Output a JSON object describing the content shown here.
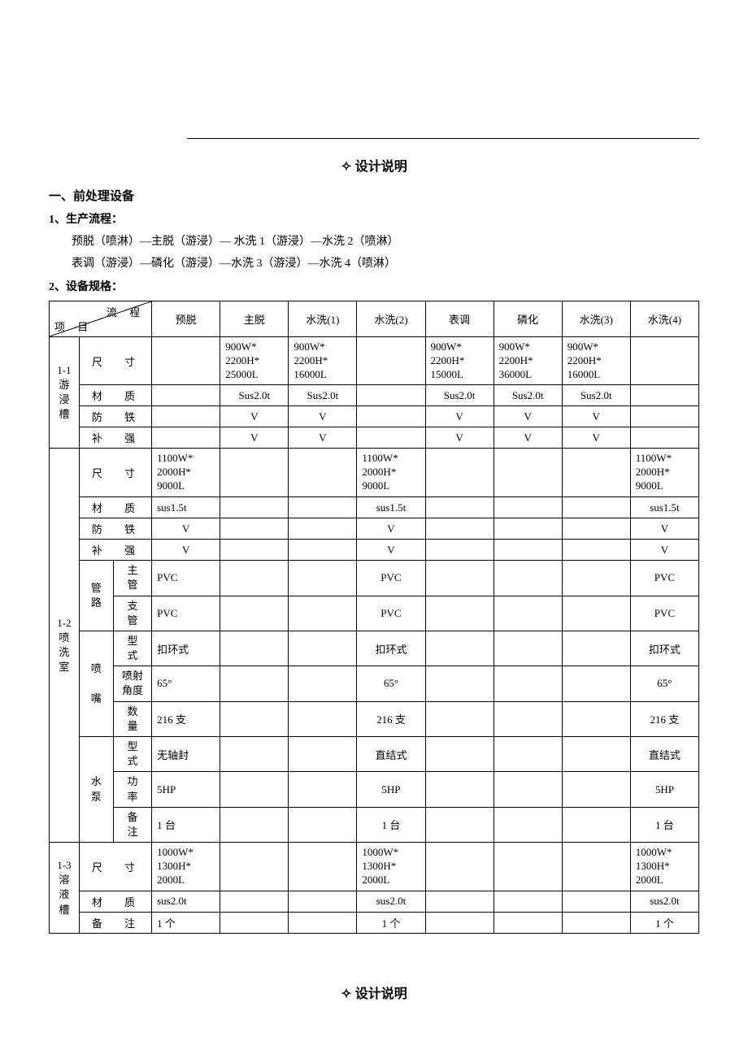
{
  "hr_present": true,
  "title": "设计说明",
  "diamond": "✧",
  "section1": "一、前处理设备",
  "sub1": "1、生产流程：",
  "flow1": "预脱（喷淋）—主脱（游浸）— 水洗 1（游浸）—水洗 2（喷淋）",
  "flow2": "表调（游浸）—磷化（游浸）—水洗 3（游浸）—水洗 4（喷淋）",
  "sub2": "2、设备规格：",
  "header": {
    "diag_top": "流  程",
    "diag_bottom": "项  目",
    "cols": [
      "预脱",
      "主脱",
      "水洗(1)",
      "水洗(2)",
      "表调",
      "磷化",
      "水洗(3)",
      "水洗(4)"
    ]
  },
  "group1": {
    "label": "1-1\n游\n浸\n槽",
    "rows": {
      "size": {
        "label": "尺    寸",
        "data": [
          "",
          "900W*\n2200H*\n25000L",
          "900W*\n2200H*\n16000L",
          "",
          "900W*\n2200H*\n15000L",
          "900W*\n2200H*\n36000L",
          "900W*\n2200H*\n16000L",
          ""
        ]
      },
      "material": {
        "label": "材    质",
        "data": [
          "",
          "Sus2.0t",
          "Sus2.0t",
          "",
          "Sus2.0t",
          "Sus2.0t",
          "Sus2.0t",
          ""
        ]
      },
      "fangti": {
        "label": "防    铁",
        "data": [
          "",
          "V",
          "V",
          "",
          "V",
          "V",
          "V",
          ""
        ]
      },
      "buqiang": {
        "label": "补    强",
        "data": [
          "",
          "V",
          "V",
          "",
          "V",
          "V",
          "V",
          ""
        ]
      }
    }
  },
  "group2": {
    "label": "1-2\n喷\n洗\n室",
    "rows": {
      "size": {
        "label": "尺    寸",
        "data": [
          "1100W*\n2000H*\n9000L",
          "",
          "",
          "1100W*\n2000H*\n9000L",
          "",
          "",
          "",
          "1100W*\n2000H*\n9000L"
        ]
      },
      "material": {
        "label": "材    质",
        "data": [
          "sus1.5t",
          "",
          "",
          "sus1.5t",
          "",
          "",
          "",
          "sus1.5t"
        ]
      },
      "fangti": {
        "label": "防    铁",
        "data": [
          "V",
          "",
          "",
          "V",
          "",
          "",
          "",
          "V"
        ]
      },
      "buqiang": {
        "label": "补    强",
        "data": [
          "V",
          "",
          "",
          "V",
          "",
          "",
          "",
          "V"
        ]
      },
      "pipe": {
        "label": "管\n路",
        "main": {
          "label": "主\n管",
          "data": [
            "PVC",
            "",
            "",
            "PVC",
            "",
            "",
            "",
            "PVC"
          ]
        },
        "branch": {
          "label": "支\n管",
          "data": [
            "PVC",
            "",
            "",
            "PVC",
            "",
            "",
            "",
            "PVC"
          ]
        }
      },
      "nozzle": {
        "label": "喷\n\n嘴",
        "type": {
          "label": "型\n式",
          "data": [
            "扣环式",
            "",
            "",
            "扣环式",
            "",
            "",
            "",
            "扣环式"
          ]
        },
        "angle": {
          "label": "喷射\n角度",
          "data": [
            "65°",
            "",
            "",
            "65°",
            "",
            "",
            "",
            "65°"
          ]
        },
        "qty": {
          "label": "数\n量",
          "data": [
            "216 支",
            "",
            "",
            "216 支",
            "",
            "",
            "",
            "216 支"
          ]
        }
      },
      "pump": {
        "label": "水\n泵",
        "type": {
          "label": "型\n式",
          "data": [
            "无轴封",
            "",
            "",
            "直结式",
            "",
            "",
            "",
            "直结式"
          ]
        },
        "power": {
          "label": "功\n率",
          "data": [
            "5HP",
            "",
            "",
            "5HP",
            "",
            "",
            "",
            "5HP"
          ]
        },
        "note": {
          "label": "备\n注",
          "data": [
            "1 台",
            "",
            "",
            "1 台",
            "",
            "",
            "",
            "1 台"
          ]
        }
      }
    }
  },
  "group3": {
    "label": "1-3\n溶\n液\n槽",
    "rows": {
      "size": {
        "label": "尺    寸",
        "data": [
          "1000W*\n1300H*\n2000L",
          "",
          "",
          "1000W*\n1300H*\n2000L",
          "",
          "",
          "",
          "1000W*\n1300H*\n2000L"
        ]
      },
      "material": {
        "label": "材    质",
        "data": [
          "sus2.0t",
          "",
          "",
          "sus2.0t",
          "",
          "",
          "",
          "sus2.0t"
        ]
      },
      "note": {
        "label": "备    注",
        "data": [
          "1 个",
          "",
          "",
          "1 个",
          "",
          "",
          "",
          "1 个"
        ]
      }
    }
  },
  "title2": "设计说明"
}
